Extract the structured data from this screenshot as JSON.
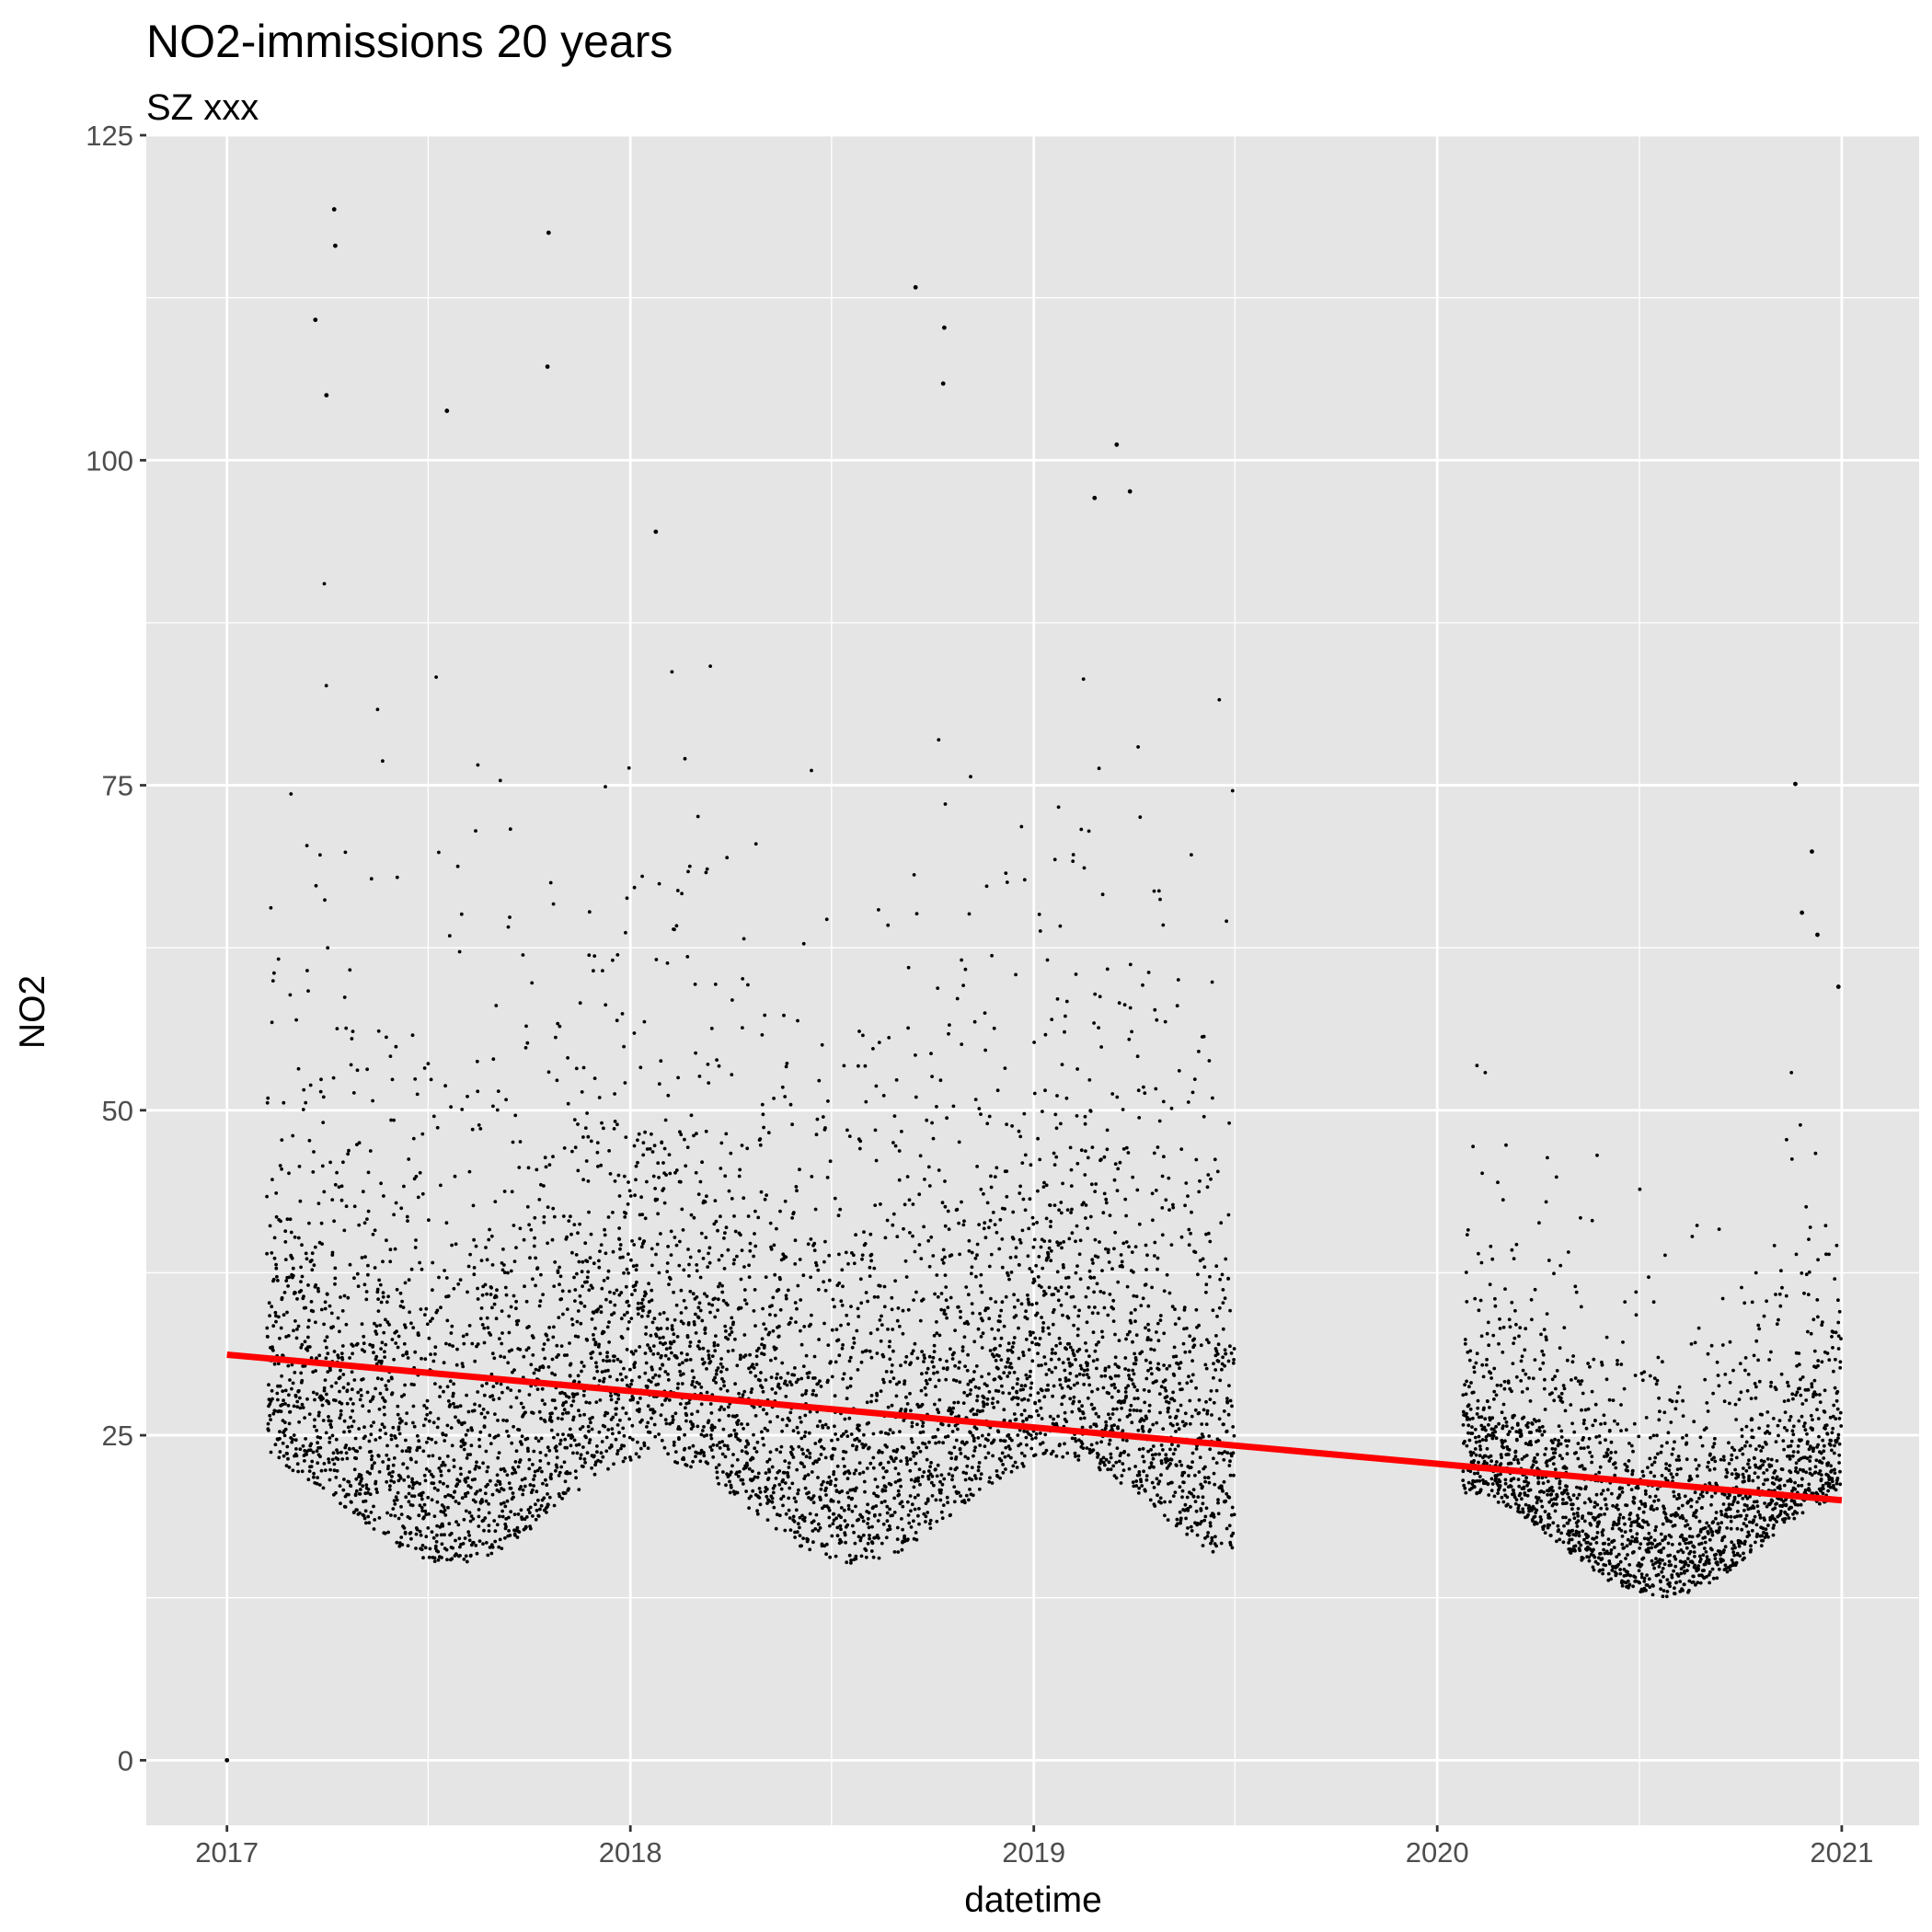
{
  "chart_data": {
    "type": "scatter",
    "title": "NO2-immissions 20 years",
    "subtitle": "SZ xxx",
    "xlabel": "datetime",
    "ylabel": "NO2",
    "x_axis": "date",
    "xlim": [
      "2016-10-20",
      "2021-03-12"
    ],
    "ylim": [
      -5,
      125
    ],
    "x_ticks": [
      {
        "label": "2017",
        "value": "2017-01-01"
      },
      {
        "label": "2018",
        "value": "2018-01-01"
      },
      {
        "label": "2019",
        "value": "2019-01-01"
      },
      {
        "label": "2020",
        "value": "2020-01-01"
      },
      {
        "label": "2021",
        "value": "2021-01-01"
      }
    ],
    "y_ticks": [
      {
        "label": "0",
        "value": 0
      },
      {
        "label": "25",
        "value": 25
      },
      {
        "label": "50",
        "value": 50
      },
      {
        "label": "75",
        "value": 75
      },
      {
        "label": "100",
        "value": 100
      },
      {
        "label": "125",
        "value": 125
      }
    ],
    "grid": true,
    "legend": "none",
    "colors": {
      "panel": "#e5e5e5",
      "grid": "#ffffff",
      "points": "#000000",
      "trend": "#ff0000"
    },
    "series": [
      {
        "type": "scatter",
        "value_range": [
          0,
          119.5
        ],
        "points": [
          [
            "2017-01-01",
            0
          ],
          [
            "2017-04-08",
            119.3
          ],
          [
            "2017-04-09",
            116.5
          ],
          [
            "2017-10-19",
            117.5
          ],
          [
            "2017-10-18",
            107.2
          ],
          [
            "2017-03-22",
            110.8
          ],
          [
            "2017-04-01",
            105.0
          ],
          [
            "2017-07-19",
            103.8
          ],
          [
            "2018-01-24",
            94.5
          ],
          [
            "2018-09-16",
            113.3
          ],
          [
            "2018-10-12",
            110.2
          ],
          [
            "2018-10-11",
            105.9
          ],
          [
            "2019-03-17",
            101.2
          ],
          [
            "2019-03-29",
            97.6
          ],
          [
            "2019-02-25",
            97.1
          ],
          [
            "2020-11-20",
            75.1
          ],
          [
            "2020-12-05",
            69.9
          ],
          [
            "2020-11-26",
            65.2
          ],
          [
            "2020-12-10",
            63.5
          ],
          [
            "2020-12-29",
            59.5
          ]
        ]
      },
      {
        "type": "line",
        "points": [
          [
            "2017-01-01",
            31.2
          ],
          [
            "2021-01-01",
            20.0
          ]
        ]
      }
    ]
  }
}
